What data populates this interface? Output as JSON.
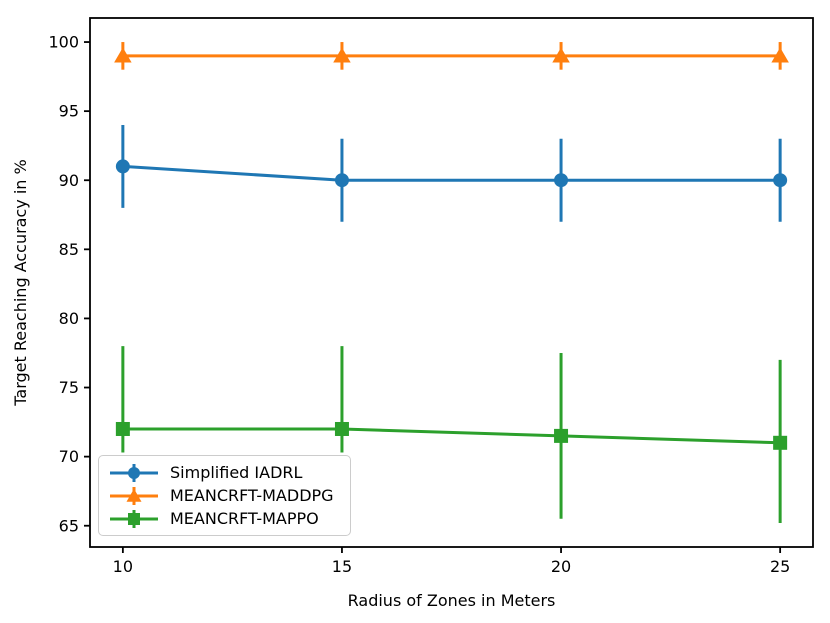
{
  "figure": {
    "background": "#ffffff",
    "axes_color": "#000000"
  },
  "chart_data": {
    "type": "line",
    "x": [
      10,
      15,
      20,
      25
    ],
    "xlabel": "Radius of Zones in Meters",
    "ylabel": "Target Reaching Accuracy in %",
    "title": "",
    "xticks": [
      10,
      15,
      20,
      25
    ],
    "yticks": [
      65,
      70,
      75,
      80,
      85,
      90,
      95,
      100
    ],
    "xlim": [
      9.25,
      25.75
    ],
    "ylim": [
      63.46,
      101.74
    ],
    "grid": false,
    "legend_position": "lower-left",
    "series": [
      {
        "name": "Simplified IADRL",
        "color": "#1f77b4",
        "marker": "circle",
        "values": [
          91,
          90,
          90,
          90
        ],
        "err_low": [
          3,
          3,
          3,
          3
        ],
        "err_high": [
          3,
          3,
          3,
          3
        ]
      },
      {
        "name": "MEANCRFT-MADDPG",
        "color": "#ff7f0e",
        "marker": "triangle",
        "values": [
          99,
          99,
          99,
          99
        ],
        "err_low": [
          1,
          1,
          1,
          1
        ],
        "err_high": [
          1,
          1,
          1,
          1
        ]
      },
      {
        "name": "MEANCRFT-MAPPO",
        "color": "#2ca02c",
        "marker": "square",
        "values": [
          72,
          72,
          71.5,
          71
        ],
        "err_low": [
          1.7,
          1.7,
          6,
          5.8
        ],
        "err_high": [
          6,
          6,
          6,
          6
        ]
      }
    ]
  }
}
